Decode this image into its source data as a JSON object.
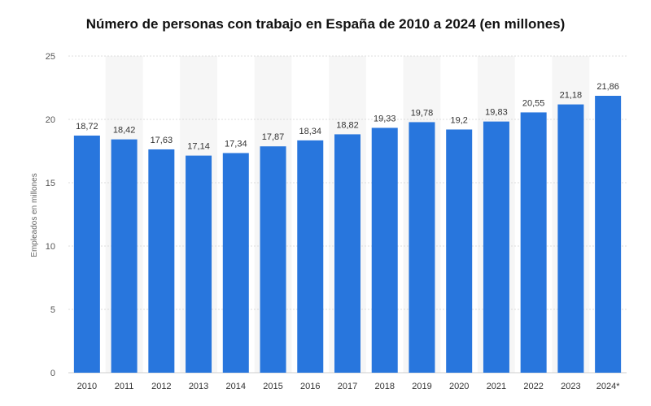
{
  "chart_data": {
    "type": "bar",
    "title": "Número de personas con trabajo en España de 2010 a 2024 (en millones)",
    "ylabel": "Empleados en millones",
    "xlabel": "",
    "categories": [
      "2010",
      "2011",
      "2012",
      "2013",
      "2014",
      "2015",
      "2016",
      "2017",
      "2018",
      "2019",
      "2020",
      "2021",
      "2022",
      "2023",
      "2024*"
    ],
    "values": [
      18.72,
      18.42,
      17.63,
      17.14,
      17.34,
      17.87,
      18.34,
      18.82,
      19.33,
      19.78,
      19.2,
      19.83,
      20.55,
      21.18,
      21.86
    ],
    "value_labels": [
      "18,72",
      "18,42",
      "17,63",
      "17,14",
      "17,34",
      "17,87",
      "18,34",
      "18,82",
      "19,33",
      "19,78",
      "19,2",
      "19,83",
      "20,55",
      "21,18",
      "21,86"
    ],
    "yticks": [
      0,
      5,
      10,
      15,
      20,
      25
    ],
    "ylim": [
      0,
      25
    ],
    "grid": true,
    "bar_color": "#2876dd",
    "alt_band_color": "#f6f6f6"
  }
}
